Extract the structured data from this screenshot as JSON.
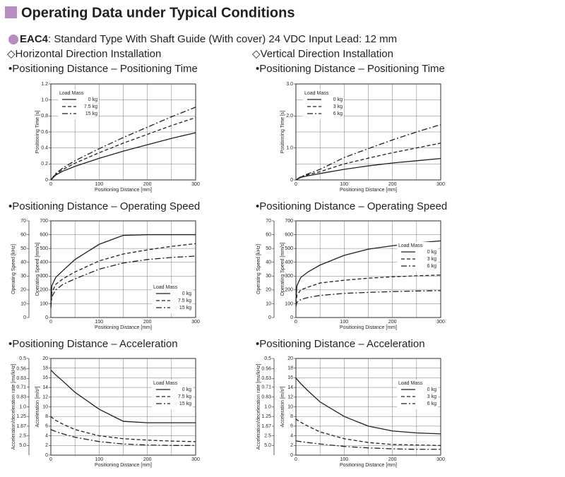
{
  "title": "Operating Data under Typical Conditions",
  "product": {
    "model": "EAC4",
    "description": ": Standard Type  With Shaft Guide (With cover)  24 VDC Input  Lead: 12 mm"
  },
  "columns": [
    "◇Horizontal Direction Installation",
    "◇Vertical Direction Installation"
  ],
  "chart_data": [
    {
      "type": "line",
      "title": "•Positioning Distance – Positioning Time",
      "xlabel": "Positioning Distance [mm]",
      "ylabel": "Positioning Time [s]",
      "legend_title": "Load Mass",
      "legend": "upper left",
      "xlim": [
        0,
        300
      ],
      "xticks": [
        0,
        100,
        200,
        300
      ],
      "xgrid": [
        50,
        150,
        250
      ],
      "ylim": [
        0,
        1.2
      ],
      "yticks": [
        0,
        0.2,
        0.4,
        0.6,
        0.8,
        {
          "value": 1,
          "label": "1.0"
        },
        1.2
      ],
      "x": [
        0,
        10,
        25,
        50,
        100,
        150,
        200,
        250,
        300
      ],
      "series": [
        {
          "name": "0 kg",
          "color": "#231f20",
          "dash": "solid",
          "values": [
            0,
            0.06,
            0.11,
            0.17,
            0.27,
            0.36,
            0.44,
            0.52,
            0.59
          ]
        },
        {
          "name": "7.5 kg",
          "color": "#231f20",
          "dash": "dashed",
          "values": [
            0,
            0.07,
            0.13,
            0.21,
            0.34,
            0.46,
            0.57,
            0.68,
            0.78
          ]
        },
        {
          "name": "15 kg",
          "color": "#231f20",
          "dash": "dashdot",
          "values": [
            0,
            0.08,
            0.15,
            0.24,
            0.39,
            0.53,
            0.66,
            0.79,
            0.91
          ]
        }
      ]
    },
    {
      "type": "line",
      "title": "•Positioning Distance – Positioning Time",
      "xlabel": "Positioning Distance [mm]",
      "ylabel": "Positioning Time [s]",
      "legend_title": "Load Mass",
      "legend": "upper left",
      "xlim": [
        0,
        300
      ],
      "xticks": [
        0,
        100,
        200,
        300
      ],
      "xgrid": [
        50,
        150,
        250
      ],
      "ylim": [
        0,
        3
      ],
      "yticks": [
        0,
        {
          "value": 1,
          "label": "1.0"
        },
        {
          "value": 2,
          "label": "2.0"
        },
        {
          "value": 3,
          "label": "3.0"
        }
      ],
      "ygrid": [
        0.5,
        1.5,
        2.5
      ],
      "x": [
        0,
        10,
        25,
        50,
        100,
        150,
        200,
        250,
        300
      ],
      "series": [
        {
          "name": "0 kg",
          "color": "#231f20",
          "dash": "solid",
          "values": [
            0,
            0.08,
            0.13,
            0.2,
            0.33,
            0.44,
            0.53,
            0.6,
            0.67
          ]
        },
        {
          "name": "3 kg",
          "color": "#231f20",
          "dash": "dashed",
          "values": [
            0,
            0.09,
            0.16,
            0.26,
            0.5,
            0.68,
            0.85,
            1.0,
            1.15
          ]
        },
        {
          "name": "6 kg",
          "color": "#231f20",
          "dash": "dashdot",
          "values": [
            0,
            0.1,
            0.19,
            0.33,
            0.7,
            0.98,
            1.25,
            1.5,
            1.73
          ]
        }
      ]
    },
    {
      "type": "line",
      "title": "•Positioning Distance – Operating Speed",
      "xlabel": "Positioning Distance [mm]",
      "ylabel": "Operating Speed [mm/s]",
      "y2label": "Operating Speed [kHz]",
      "legend_title": "Load Mass",
      "legend": "lower right",
      "xlim": [
        0,
        300
      ],
      "xticks": [
        0,
        100,
        200,
        300
      ],
      "xgrid": [
        50,
        150,
        250
      ],
      "ylim": [
        0,
        700
      ],
      "yticks": [
        0,
        100,
        200,
        300,
        400,
        500,
        600,
        700
      ],
      "y2lim": [
        0,
        70
      ],
      "y2ticks": [
        0,
        10,
        20,
        30,
        40,
        50,
        60,
        70
      ],
      "x": [
        0,
        2,
        10,
        25,
        50,
        100,
        150,
        200,
        250,
        300
      ],
      "series": [
        {
          "name": "0 kg",
          "color": "#231f20",
          "dash": "solid",
          "values": [
            100,
            230,
            290,
            340,
            420,
            530,
            595,
            600,
            600,
            600
          ]
        },
        {
          "name": "7.5 kg",
          "color": "#231f20",
          "dash": "dashed",
          "values": [
            80,
            180,
            240,
            280,
            330,
            410,
            460,
            490,
            515,
            535
          ]
        },
        {
          "name": "15 kg",
          "color": "#231f20",
          "dash": "dashdot",
          "values": [
            70,
            150,
            200,
            240,
            280,
            350,
            395,
            420,
            435,
            445
          ]
        }
      ]
    },
    {
      "type": "line",
      "title": "•Positioning Distance – Operating Speed",
      "xlabel": "Positioning Distance [mm]",
      "ylabel": "Operating Speed [mm/s]",
      "y2label": "Operating Speed [kHz]",
      "legend_title": "Load Mass",
      "legend": "upper right",
      "xlim": [
        0,
        300
      ],
      "xticks": [
        0,
        100,
        200,
        300
      ],
      "xgrid": [
        50,
        150,
        250
      ],
      "ylim": [
        0,
        700
      ],
      "yticks": [
        0,
        100,
        200,
        300,
        400,
        500,
        600,
        700
      ],
      "y2lim": [
        0,
        70
      ],
      "y2ticks": [
        0,
        10,
        20,
        30,
        40,
        50,
        60,
        70
      ],
      "x": [
        0,
        2,
        10,
        25,
        50,
        100,
        150,
        200,
        250,
        300
      ],
      "series": [
        {
          "name": "0 kg",
          "color": "#231f20",
          "dash": "solid",
          "values": [
            120,
            230,
            290,
            330,
            380,
            450,
            495,
            520,
            540,
            555
          ]
        },
        {
          "name": "3 kg",
          "color": "#231f20",
          "dash": "dashed",
          "values": [
            100,
            160,
            200,
            220,
            250,
            270,
            285,
            295,
            302,
            308
          ]
        },
        {
          "name": "6 kg",
          "color": "#231f20",
          "dash": "dashdot",
          "values": [
            80,
            110,
            130,
            145,
            160,
            175,
            182,
            188,
            192,
            195
          ]
        }
      ]
    },
    {
      "type": "line",
      "title": "•Positioning Distance – Acceleration",
      "xlabel": "Positioning Distance [mm]",
      "ylabel": "Acceleration [m/s²]",
      "y2label": "Acceleration/deceleration rate [ms/kHz]",
      "legend_title": "Load Mass",
      "legend": "upper right",
      "xlim": [
        0,
        300
      ],
      "xticks": [
        0,
        100,
        200,
        300
      ],
      "xgrid": [
        50,
        150,
        250
      ],
      "ylim": [
        0,
        20
      ],
      "yticks": [
        0,
        2,
        4,
        6,
        8,
        10,
        12,
        14,
        16,
        18,
        20
      ],
      "y2scale": "reciprocal",
      "y2lim": [
        5,
        0.5
      ],
      "y2ticks": [
        {
          "value": 5,
          "label": "5.0"
        },
        2.5,
        1.67,
        1.25,
        {
          "value": 1,
          "label": "1.0"
        },
        0.83,
        0.71,
        0.63,
        0.56,
        0.5
      ],
      "x": [
        0,
        2,
        10,
        25,
        50,
        100,
        150,
        200,
        250,
        300
      ],
      "series": [
        {
          "name": "0 kg",
          "color": "#231f20",
          "dash": "solid",
          "values": [
            17.6,
            17.4,
            16.6,
            15.3,
            13,
            9.5,
            7.0,
            6.7,
            6.7,
            6.7
          ]
        },
        {
          "name": "7.5 kg",
          "color": "#231f20",
          "dash": "dashed",
          "values": [
            8,
            7.8,
            7.2,
            6.4,
            5.3,
            4.0,
            3.4,
            3.1,
            2.9,
            2.8
          ]
        },
        {
          "name": "15 kg",
          "color": "#231f20",
          "dash": "dashdot",
          "values": [
            5.3,
            5.2,
            4.9,
            4.4,
            3.7,
            2.8,
            2.3,
            2.1,
            2.0,
            2.0
          ]
        }
      ]
    },
    {
      "type": "line",
      "title": "•Positioning Distance – Acceleration",
      "xlabel": "Positioning Distance [mm]",
      "ylabel": "Acceleration [m/s²]",
      "y2label": "Acceleration/deceleration rate [ms/kHz]",
      "legend_title": "Load Mass",
      "legend": "upper right",
      "xlim": [
        0,
        300
      ],
      "xticks": [
        0,
        100,
        200,
        300
      ],
      "xgrid": [
        50,
        150,
        250
      ],
      "ylim": [
        0,
        20
      ],
      "yticks": [
        0,
        2,
        4,
        6,
        8,
        10,
        12,
        14,
        16,
        18,
        20
      ],
      "y2scale": "reciprocal",
      "y2lim": [
        5,
        0.5
      ],
      "y2ticks": [
        {
          "value": 5,
          "label": "5.0"
        },
        2.5,
        1.67,
        1.25,
        {
          "value": 1,
          "label": "1.0"
        },
        0.83,
        0.71,
        0.63,
        0.56,
        0.5
      ],
      "x": [
        0,
        2,
        10,
        25,
        50,
        100,
        150,
        200,
        250,
        300
      ],
      "series": [
        {
          "name": "0 kg",
          "color": "#231f20",
          "dash": "solid",
          "values": [
            16,
            15.7,
            14.8,
            13.3,
            11,
            8,
            6,
            5,
            4.6,
            4.4
          ]
        },
        {
          "name": "3 kg",
          "color": "#231f20",
          "dash": "dashed",
          "values": [
            7.5,
            7.3,
            6.8,
            6,
            4.8,
            3.4,
            2.6,
            2.2,
            2.1,
            2.0
          ]
        },
        {
          "name": "6 kg",
          "color": "#231f20",
          "dash": "dashdot",
          "values": [
            3.0,
            2.9,
            2.8,
            2.6,
            2.3,
            1.8,
            1.5,
            1.3,
            1.2,
            1.2
          ]
        }
      ]
    }
  ]
}
